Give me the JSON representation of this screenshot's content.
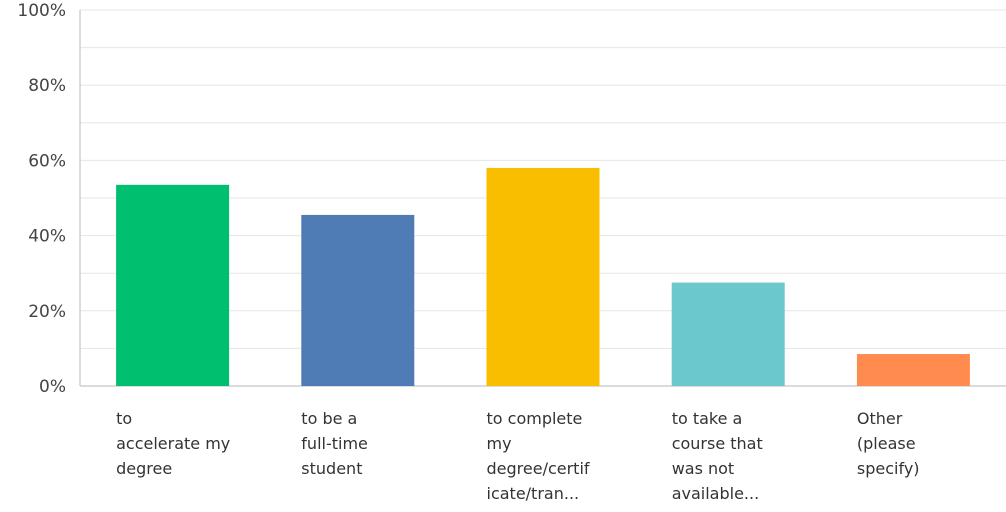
{
  "chart_data": {
    "type": "bar",
    "categories": [
      [
        "to",
        "accelerate my",
        "degree"
      ],
      [
        "to be a",
        "full-time",
        "student"
      ],
      [
        "to complete",
        "my",
        "degree/certif",
        "icate/tran..."
      ],
      [
        "to take a",
        "course that",
        "was not",
        "available..."
      ],
      [
        "Other",
        "(please",
        "specify)"
      ]
    ],
    "values": [
      53.5,
      45.5,
      58,
      27.5,
      8.5
    ],
    "colors": [
      "#00bf6f",
      "#507cb6",
      "#f9be00",
      "#6bc8cd",
      "#ff8b4f"
    ],
    "yticks": [
      "0%",
      "20%",
      "40%",
      "60%",
      "80%",
      "100%"
    ],
    "ylim": [
      0,
      100
    ],
    "grid": true
  }
}
